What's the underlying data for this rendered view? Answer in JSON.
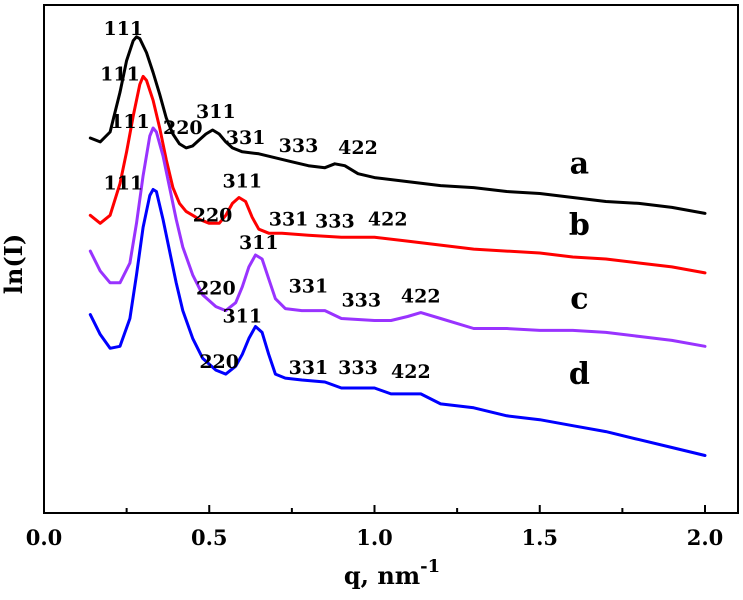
{
  "chart_data": {
    "type": "line",
    "xlabel": "q, nm",
    "xlabel_superscript": "-1",
    "ylabel": "ln(I)",
    "xlim": [
      0.0,
      2.0
    ],
    "x_ticks": [
      "0.0",
      "0.5",
      "1.0",
      "1.5",
      "2.0"
    ],
    "y_ticks": [],
    "grid": false,
    "legend": "none",
    "series": [
      {
        "name": "a",
        "color": "#000000",
        "x": [
          0.14,
          0.17,
          0.2,
          0.23,
          0.25,
          0.27,
          0.28,
          0.29,
          0.31,
          0.33,
          0.35,
          0.37,
          0.39,
          0.41,
          0.43,
          0.45,
          0.47,
          0.49,
          0.51,
          0.53,
          0.55,
          0.57,
          0.6,
          0.65,
          0.7,
          0.75,
          0.8,
          0.85,
          0.88,
          0.91,
          0.95,
          1.0,
          1.1,
          1.2,
          1.3,
          1.4,
          1.5,
          1.6,
          1.7,
          1.8,
          1.9,
          2.0
        ],
        "y": [
          9.45,
          9.35,
          9.6,
          10.6,
          11.4,
          11.9,
          12.0,
          11.95,
          11.6,
          11.1,
          10.55,
          9.95,
          9.55,
          9.3,
          9.2,
          9.25,
          9.4,
          9.55,
          9.65,
          9.55,
          9.35,
          9.2,
          9.1,
          9.05,
          8.95,
          8.85,
          8.75,
          8.7,
          8.8,
          8.75,
          8.55,
          8.45,
          8.35,
          8.25,
          8.2,
          8.1,
          8.05,
          7.95,
          7.85,
          7.8,
          7.7,
          7.55
        ]
      },
      {
        "name": "b",
        "color": "#ff0000",
        "x": [
          0.14,
          0.17,
          0.2,
          0.23,
          0.25,
          0.27,
          0.29,
          0.3,
          0.31,
          0.33,
          0.35,
          0.37,
          0.39,
          0.41,
          0.43,
          0.45,
          0.47,
          0.5,
          0.53,
          0.55,
          0.57,
          0.59,
          0.61,
          0.63,
          0.65,
          0.68,
          0.72,
          0.8,
          0.9,
          1.0,
          1.1,
          1.2,
          1.3,
          1.4,
          1.5,
          1.6,
          1.7,
          1.8,
          1.9,
          2.0
        ],
        "y": [
          7.5,
          7.3,
          7.5,
          8.3,
          9.1,
          10.0,
          10.8,
          11.0,
          10.9,
          10.4,
          9.7,
          8.9,
          8.2,
          7.8,
          7.6,
          7.5,
          7.4,
          7.3,
          7.3,
          7.5,
          7.8,
          7.95,
          7.85,
          7.45,
          7.15,
          7.05,
          7.05,
          7.0,
          6.95,
          6.95,
          6.85,
          6.75,
          6.65,
          6.6,
          6.55,
          6.45,
          6.4,
          6.3,
          6.2,
          6.05
        ]
      },
      {
        "name": "c",
        "color": "#9933ff",
        "x": [
          0.14,
          0.17,
          0.2,
          0.23,
          0.26,
          0.28,
          0.3,
          0.32,
          0.33,
          0.34,
          0.36,
          0.38,
          0.4,
          0.42,
          0.45,
          0.48,
          0.52,
          0.55,
          0.58,
          0.6,
          0.62,
          0.64,
          0.66,
          0.68,
          0.7,
          0.73,
          0.78,
          0.85,
          0.9,
          1.0,
          1.05,
          1.1,
          1.14,
          1.2,
          1.3,
          1.4,
          1.5,
          1.6,
          1.7,
          1.8,
          1.9,
          2.0
        ],
        "y": [
          6.6,
          6.1,
          5.8,
          5.8,
          6.3,
          7.3,
          8.5,
          9.5,
          9.7,
          9.6,
          9.0,
          8.2,
          7.4,
          6.7,
          6.0,
          5.5,
          5.2,
          5.1,
          5.3,
          5.7,
          6.2,
          6.5,
          6.4,
          5.9,
          5.4,
          5.15,
          5.1,
          5.1,
          4.9,
          4.85,
          4.85,
          4.95,
          5.05,
          4.9,
          4.65,
          4.65,
          4.6,
          4.6,
          4.55,
          4.45,
          4.35,
          4.2
        ]
      },
      {
        "name": "d",
        "color": "#0000ff",
        "x": [
          0.14,
          0.17,
          0.2,
          0.23,
          0.26,
          0.28,
          0.3,
          0.32,
          0.33,
          0.34,
          0.36,
          0.38,
          0.4,
          0.42,
          0.45,
          0.48,
          0.52,
          0.55,
          0.58,
          0.6,
          0.62,
          0.64,
          0.66,
          0.68,
          0.7,
          0.73,
          0.78,
          0.85,
          0.9,
          1.0,
          1.05,
          1.1,
          1.14,
          1.2,
          1.3,
          1.4,
          1.5,
          1.6,
          1.7,
          1.8,
          1.9,
          2.0
        ],
        "y": [
          5.0,
          4.5,
          4.15,
          4.2,
          4.9,
          6.0,
          7.2,
          8.0,
          8.15,
          8.1,
          7.4,
          6.6,
          5.8,
          5.1,
          4.4,
          3.9,
          3.6,
          3.5,
          3.7,
          4.0,
          4.4,
          4.7,
          4.55,
          4.0,
          3.5,
          3.4,
          3.35,
          3.3,
          3.15,
          3.15,
          3.0,
          3.0,
          3.0,
          2.75,
          2.65,
          2.45,
          2.35,
          2.2,
          2.05,
          1.85,
          1.65,
          1.45
        ]
      }
    ],
    "peak_labels": [
      {
        "series": "a",
        "items": [
          {
            "text": "111",
            "x": 0.24,
            "y": 12.05
          },
          {
            "text": "220",
            "x": 0.42,
            "y": 9.55
          },
          {
            "text": "311",
            "x": 0.52,
            "y": 9.95
          },
          {
            "text": "331",
            "x": 0.61,
            "y": 9.3
          },
          {
            "text": "333",
            "x": 0.77,
            "y": 9.1
          },
          {
            "text": "422",
            "x": 0.95,
            "y": 9.05
          }
        ]
      },
      {
        "series": "b",
        "items": [
          {
            "text": "111",
            "x": 0.23,
            "y": 10.9
          },
          {
            "text": "220",
            "x": 0.51,
            "y": 7.35
          },
          {
            "text": "311",
            "x": 0.6,
            "y": 8.2
          },
          {
            "text": "331",
            "x": 0.74,
            "y": 7.25
          },
          {
            "text": "333",
            "x": 0.88,
            "y": 7.2
          },
          {
            "text": "422",
            "x": 1.04,
            "y": 7.25
          }
        ]
      },
      {
        "series": "c",
        "items": [
          {
            "text": "111",
            "x": 0.26,
            "y": 9.7
          },
          {
            "text": "220",
            "x": 0.52,
            "y": 5.5
          },
          {
            "text": "311",
            "x": 0.65,
            "y": 6.65
          },
          {
            "text": "331",
            "x": 0.8,
            "y": 5.55
          },
          {
            "text": "333",
            "x": 0.96,
            "y": 5.2
          },
          {
            "text": "422",
            "x": 1.14,
            "y": 5.3
          }
        ]
      },
      {
        "series": "d",
        "items": [
          {
            "text": "111",
            "x": 0.24,
            "y": 8.15
          },
          {
            "text": "220",
            "x": 0.53,
            "y": 3.65
          },
          {
            "text": "311",
            "x": 0.6,
            "y": 4.8
          },
          {
            "text": "331",
            "x": 0.8,
            "y": 3.5
          },
          {
            "text": "333",
            "x": 0.95,
            "y": 3.5
          },
          {
            "text": "422",
            "x": 1.11,
            "y": 3.4
          }
        ]
      }
    ],
    "series_labels": [
      {
        "text": "a",
        "x": 1.62,
        "y": 8.55
      },
      {
        "text": "b",
        "x": 1.62,
        "y": 7.0
      },
      {
        "text": "c",
        "x": 1.62,
        "y": 5.15
      },
      {
        "text": "d",
        "x": 1.62,
        "y": 3.25
      }
    ]
  }
}
